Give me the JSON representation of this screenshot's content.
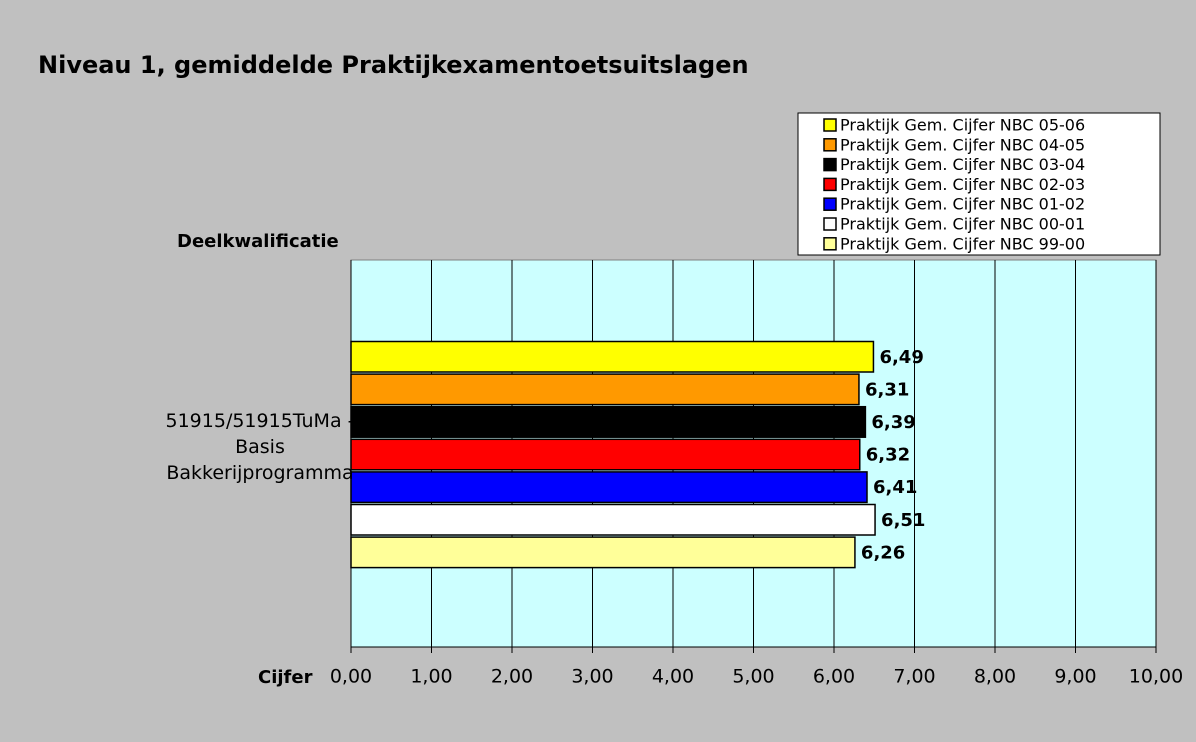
{
  "chart_data": {
    "type": "bar",
    "orientation": "horizontal",
    "title": "Niveau 1, gemiddelde Praktijkexamentoetsuitslagen",
    "ylabel": "Deelkwalificatie",
    "xlabel": "Cijfer",
    "categories": [
      "51915/51915TuMa - Basis Bakkerijprogramma"
    ],
    "series": [
      {
        "name": "Praktijk Gem. Cijfer NBC 05-06",
        "color": "#ffff00",
        "values": [
          6.49
        ],
        "value_labels": [
          "6,49"
        ]
      },
      {
        "name": "Praktijk Gem. Cijfer NBC 04-05",
        "color": "#ff9900",
        "values": [
          6.31
        ],
        "value_labels": [
          "6,31"
        ]
      },
      {
        "name": "Praktijk Gem. Cijfer NBC 03-04",
        "color": "#000000",
        "values": [
          6.39
        ],
        "value_labels": [
          "6,39"
        ]
      },
      {
        "name": "Praktijk Gem. Cijfer NBC 02-03",
        "color": "#ff0000",
        "values": [
          6.32
        ],
        "value_labels": [
          "6,32"
        ]
      },
      {
        "name": "Praktijk Gem. Cijfer NBC 01-02",
        "color": "#0000ff",
        "values": [
          6.41
        ],
        "value_labels": [
          "6,41"
        ]
      },
      {
        "name": "Praktijk Gem. Cijfer NBC 00-01",
        "color": "#ffffff",
        "values": [
          6.51
        ],
        "value_labels": [
          "6,51"
        ]
      },
      {
        "name": "Praktijk Gem. Cijfer NBC 99-00",
        "color": "#ffff99",
        "values": [
          6.26
        ],
        "value_labels": [
          "6,26"
        ]
      }
    ],
    "xlim": [
      0,
      10
    ],
    "xticks": [
      {
        "value": 0,
        "label": "0,00"
      },
      {
        "value": 1,
        "label": "1,00"
      },
      {
        "value": 2,
        "label": "2,00"
      },
      {
        "value": 3,
        "label": "3,00"
      },
      {
        "value": 4,
        "label": "4,00"
      },
      {
        "value": 5,
        "label": "5,00"
      },
      {
        "value": 6,
        "label": "6,00"
      },
      {
        "value": 7,
        "label": "7,00"
      },
      {
        "value": 8,
        "label": "8,00"
      },
      {
        "value": 9,
        "label": "9,00"
      },
      {
        "value": 10,
        "label": "10,00"
      }
    ],
    "grid": true,
    "legend": "top-right"
  }
}
